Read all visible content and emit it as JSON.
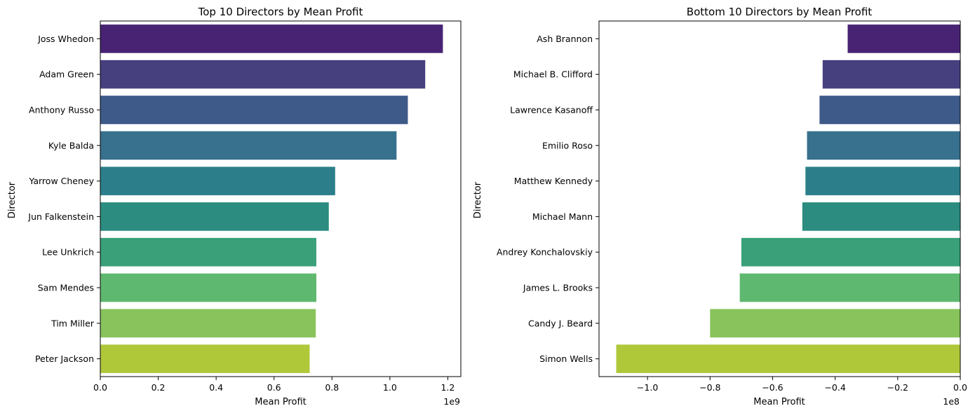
{
  "chart_data": [
    {
      "type": "bar",
      "orientation": "horizontal",
      "title": "Top 10 Directors by Mean Profit",
      "xlabel": "Mean Profit",
      "ylabel": "Director",
      "x_offset_label": "1e9",
      "xlim": [
        0,
        1.245
      ],
      "xticks": [
        0.0,
        0.2,
        0.4,
        0.6,
        0.8,
        1.0,
        1.2
      ],
      "xtick_labels": [
        "0.0",
        "0.2",
        "0.4",
        "0.6",
        "0.8",
        "1.0",
        "1.2"
      ],
      "grid": false,
      "categories": [
        "Joss Whedon",
        "Adam Green",
        "Anthony Russo",
        "Kyle Balda",
        "Yarrow Cheney",
        "Jun Falkenstein",
        "Lee Unkrich",
        "Sam Mendes",
        "Tim Miller",
        "Peter Jackson"
      ],
      "values": [
        1.183,
        1.122,
        1.062,
        1.023,
        0.811,
        0.789,
        0.746,
        0.746,
        0.744,
        0.723
      ],
      "colors": [
        "#482374",
        "#46407f",
        "#3e5a89",
        "#37718d",
        "#2c7f8a",
        "#2b8c7f",
        "#3aa07a",
        "#5eb86f",
        "#88c35c",
        "#afc83a"
      ]
    },
    {
      "type": "bar",
      "orientation": "horizontal",
      "title": "Bottom 10 Directors by Mean Profit",
      "xlabel": "Mean Profit",
      "ylabel": "Director",
      "x_offset_label": "1e8",
      "xlim": [
        -1.155,
        0.0
      ],
      "xticks": [
        -1.0,
        -0.8,
        -0.6,
        -0.4,
        -0.2,
        0.0
      ],
      "xtick_labels": [
        "−1.0",
        "−0.8",
        "−0.6",
        "−0.4",
        "−0.2",
        "0.0"
      ],
      "grid": false,
      "categories": [
        "Ash Brannon",
        "Michael B. Clifford",
        "Lawrence Kasanoff",
        "Emilio Roso",
        "Matthew Kennedy",
        "Michael Mann",
        "Andrey Konchalovskiy",
        "James L. Brooks",
        "Candy J. Beard",
        "Simon Wells"
      ],
      "values": [
        -0.36,
        -0.44,
        -0.45,
        -0.49,
        -0.495,
        -0.505,
        -0.7,
        -0.705,
        -0.8,
        -1.1
      ],
      "colors": [
        "#482374",
        "#46407f",
        "#3e5a89",
        "#37718d",
        "#2c7f8a",
        "#2b8c7f",
        "#3aa07a",
        "#5eb86f",
        "#88c35c",
        "#afc83a"
      ]
    }
  ]
}
